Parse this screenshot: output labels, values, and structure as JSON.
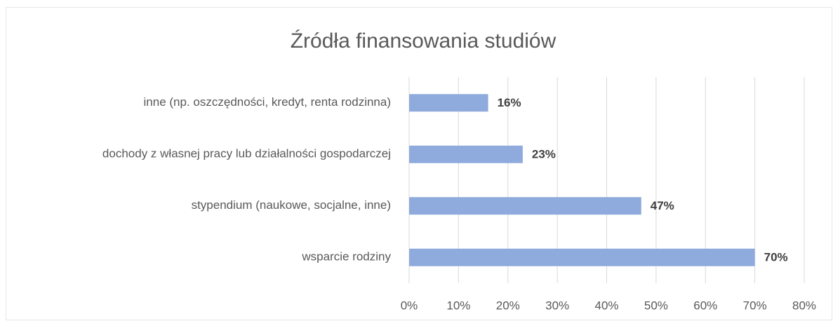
{
  "chart_data": {
    "type": "bar",
    "orientation": "horizontal",
    "title": "Źródła finansowania studiów",
    "categories": [
      "inne (np. oszczędności, kredyt, renta rodzinna)",
      "dochody z własnej pracy lub działalności gospodarczej",
      "stypendium (naukowe, socjalne, inne)",
      "wsparcie rodziny"
    ],
    "values": [
      16,
      23,
      47,
      70
    ],
    "value_labels": [
      "16%",
      "23%",
      "47%",
      "70%"
    ],
    "color": "#8faadc",
    "xlim": [
      0,
      80
    ],
    "xticks": [
      {
        "value": 0,
        "label": "0%"
      },
      {
        "value": 10,
        "label": "10%"
      },
      {
        "value": 20,
        "label": "20%"
      },
      {
        "value": 30,
        "label": "30%"
      },
      {
        "value": 40,
        "label": "40%"
      },
      {
        "value": 50,
        "label": "50%"
      },
      {
        "value": 60,
        "label": "60%"
      },
      {
        "value": 70,
        "label": "70%"
      },
      {
        "value": 80,
        "label": "80%"
      }
    ],
    "grid": true
  }
}
